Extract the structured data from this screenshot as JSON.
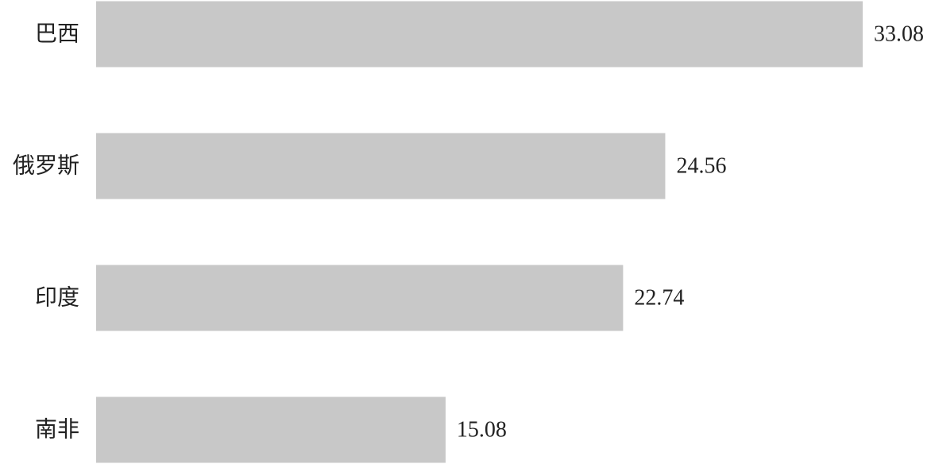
{
  "chart_data": {
    "type": "bar",
    "orientation": "horizontal",
    "categories": [
      "巴西",
      "俄罗斯",
      "印度",
      "南非"
    ],
    "values": [
      33.08,
      24.56,
      22.74,
      15.08
    ],
    "color": "#c8c8c8"
  }
}
